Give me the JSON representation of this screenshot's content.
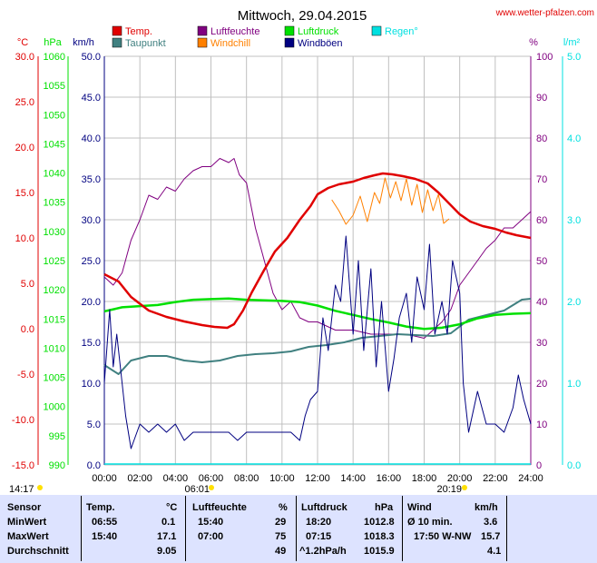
{
  "header": {
    "title": "Mittwoch, 29.04.2015",
    "site": "www.wetter-pfalzen.com"
  },
  "sun": {
    "rise_label": "06:01",
    "set_label": "20:19",
    "left_label": "14:17"
  },
  "colors": {
    "temp": "#e00000",
    "dew": "#408080",
    "humidity": "#800080",
    "windchill": "#ff8000",
    "pressure": "#00e000",
    "gust": "#000080",
    "rain": "#00e0e0",
    "grid": "#c0c0c0",
    "table_bg": "#dde3ff"
  },
  "chart_data": {
    "type": "line",
    "title": "Mittwoch, 29.04.2015",
    "xlabel": "",
    "x_ticks": [
      "00:00",
      "02:00",
      "04:00",
      "06:00",
      "08:00",
      "10:00",
      "12:00",
      "14:00",
      "16:00",
      "18:00",
      "20:00",
      "22:00",
      "24:00"
    ],
    "xlim_hours": [
      0,
      24
    ],
    "axes": {
      "temp": {
        "unit": "°C",
        "range": [
          -15,
          30
        ],
        "ticks": [
          "30.0",
          "25.0",
          "20.0",
          "15.0",
          "10.0",
          "5.0",
          "0.0",
          "-5.0",
          "-10.0",
          "-15.0"
        ]
      },
      "pressure": {
        "unit": "hPa",
        "range": [
          990,
          1060
        ],
        "ticks": [
          "1060",
          "1055",
          "1050",
          "1045",
          "1040",
          "1035",
          "1030",
          "1025",
          "1020",
          "1015",
          "1010",
          "1005",
          "1000",
          "995",
          "990"
        ]
      },
      "wind": {
        "unit": "km/h",
        "range": [
          0,
          50
        ],
        "ticks": [
          "50.0",
          "45.0",
          "40.0",
          "35.0",
          "30.0",
          "25.0",
          "20.0",
          "15.0",
          "10.0",
          "5.0",
          "0.0"
        ]
      },
      "humidity": {
        "unit": "%",
        "range": [
          0,
          100
        ],
        "ticks": [
          "100",
          "90",
          "80",
          "70",
          "60",
          "50",
          "40",
          "30",
          "20",
          "10",
          "0"
        ]
      },
      "rain": {
        "unit": "l/m²",
        "range": [
          0,
          5
        ],
        "ticks": [
          "5.0",
          "4.0",
          "3.0",
          "2.0",
          "1.0",
          "0.0"
        ]
      }
    },
    "legend": [
      {
        "name": "Temp.",
        "key": "temp"
      },
      {
        "name": "Luftfeuchte",
        "key": "humidity"
      },
      {
        "name": "Luftdruck",
        "key": "pressure"
      },
      {
        "name": "Regen°",
        "key": "rain"
      },
      {
        "name": "Taupunkt",
        "key": "dew"
      },
      {
        "name": "Windchill",
        "key": "windchill"
      },
      {
        "name": "Windböen",
        "key": "gust"
      }
    ],
    "series": [
      {
        "name": "Temp.",
        "key": "temp",
        "axis": "temp",
        "x": [
          0,
          0.8,
          1.5,
          2.5,
          3.5,
          4.5,
          5.5,
          6.2,
          6.92,
          7.3,
          7.8,
          8.3,
          9,
          9.6,
          10.3,
          11,
          11.6,
          12,
          12.6,
          13.2,
          14,
          14.6,
          15.2,
          15.67,
          16.2,
          16.8,
          17.5,
          18.2,
          18.8,
          19.4,
          20,
          20.6,
          21.3,
          22,
          22.6,
          23.2,
          24
        ],
        "y": [
          6.0,
          5.2,
          3.5,
          2.0,
          1.3,
          0.8,
          0.4,
          0.2,
          0.1,
          0.5,
          2.0,
          4.0,
          6.5,
          8.5,
          10.0,
          12.0,
          13.5,
          14.8,
          15.5,
          15.9,
          16.2,
          16.6,
          16.9,
          17.1,
          17.0,
          16.8,
          16.5,
          16.0,
          15.0,
          13.8,
          12.6,
          11.8,
          11.3,
          11.0,
          10.6,
          10.3,
          10.0
        ]
      },
      {
        "name": "Taupunkt",
        "key": "dew",
        "axis": "temp",
        "x": [
          0,
          0.8,
          1.5,
          2.5,
          3.5,
          4.5,
          5.5,
          6.5,
          7.5,
          8.5,
          9.5,
          10.5,
          11.5,
          12.5,
          13.5,
          14.5,
          15.5,
          16.5,
          17.5,
          18.5,
          19.5,
          20.5,
          21.5,
          22.5,
          23.5,
          24
        ],
        "y": [
          -4.0,
          -5.0,
          -3.5,
          -3.0,
          -3.0,
          -3.5,
          -3.7,
          -3.5,
          -3.0,
          -2.8,
          -2.7,
          -2.5,
          -2.0,
          -1.8,
          -1.5,
          -1.0,
          -0.8,
          -0.6,
          -0.7,
          -0.8,
          -0.5,
          1.0,
          1.5,
          2.0,
          3.2,
          3.3
        ]
      },
      {
        "name": "Windchill",
        "key": "windchill",
        "axis": "temp",
        "x": [
          12.8,
          13.2,
          13.6,
          14,
          14.4,
          14.8,
          15.2,
          15.5,
          15.8,
          16.1,
          16.4,
          16.7,
          17,
          17.3,
          17.6,
          17.9,
          18.2,
          18.5,
          18.8,
          19.1,
          19.4
        ],
        "y": [
          14.2,
          13.0,
          11.5,
          12.5,
          14.6,
          11.8,
          15.0,
          13.8,
          16.6,
          14.4,
          16.2,
          14.1,
          16.5,
          13.6,
          15.9,
          12.8,
          15.3,
          13.0,
          14.8,
          11.6,
          12.1
        ]
      },
      {
        "name": "Luftfeuchte",
        "key": "humidity",
        "axis": "humidity",
        "x": [
          0,
          0.5,
          1,
          1.5,
          2,
          2.5,
          3,
          3.5,
          4,
          4.5,
          5,
          5.5,
          6,
          6.5,
          7,
          7.3,
          7.6,
          8,
          8.5,
          9,
          9.5,
          10,
          10.5,
          11,
          11.5,
          12,
          12.5,
          13,
          14,
          15,
          16,
          17,
          18,
          18.5,
          19,
          19.5,
          20,
          20.5,
          21,
          21.5,
          22,
          22.5,
          23,
          23.5,
          24
        ],
        "y": [
          46,
          44,
          47,
          55,
          60,
          66,
          65,
          68,
          67,
          70,
          72,
          73,
          73,
          75,
          74,
          75,
          71,
          69,
          58,
          50,
          42,
          38,
          40,
          36,
          35,
          35,
          34,
          33,
          33,
          32,
          32,
          32,
          31,
          33,
          35,
          38,
          44,
          47,
          50,
          53,
          55,
          58,
          58,
          60,
          62
        ]
      },
      {
        "name": "Luftdruck",
        "key": "pressure",
        "axis": "pressure",
        "x": [
          0,
          1,
          2,
          3,
          4,
          5,
          6,
          7,
          8,
          9,
          10,
          11,
          12,
          13,
          14,
          15,
          16,
          17,
          18,
          19,
          20,
          21,
          22,
          23,
          24
        ],
        "y": [
          1016.3,
          1017.0,
          1017.2,
          1017.4,
          1017.9,
          1018.3,
          1018.4,
          1018.5,
          1018.3,
          1018.2,
          1018.1,
          1017.9,
          1017.3,
          1016.4,
          1015.7,
          1015.0,
          1014.4,
          1013.7,
          1013.3,
          1013.5,
          1014.1,
          1015.1,
          1015.7,
          1015.9,
          1016.0
        ]
      },
      {
        "name": "Windböen",
        "key": "gust",
        "axis": "wind",
        "x": [
          0,
          0.3,
          0.5,
          0.7,
          1,
          1.2,
          1.5,
          2,
          2.5,
          3,
          3.5,
          4,
          4.5,
          5,
          5.5,
          6,
          6.5,
          7,
          7.5,
          8,
          8.5,
          9,
          9.5,
          10,
          10.5,
          11,
          11.3,
          11.6,
          12,
          12.3,
          12.6,
          13,
          13.3,
          13.6,
          14,
          14.3,
          14.6,
          15,
          15.3,
          15.6,
          16,
          16.3,
          16.6,
          17,
          17.3,
          17.6,
          18,
          18.3,
          18.6,
          19,
          19.3,
          19.6,
          20,
          20.2,
          20.5,
          21,
          21.5,
          22,
          22.5,
          23,
          23.3,
          23.6,
          24
        ],
        "y": [
          10,
          19,
          12,
          16,
          10,
          6,
          2,
          5,
          4,
          5,
          4,
          5,
          3,
          4,
          4,
          4,
          4,
          4,
          3,
          4,
          4,
          4,
          4,
          4,
          4,
          3,
          6,
          8,
          9,
          18,
          14,
          22,
          20,
          28,
          16,
          25,
          14,
          24,
          12,
          20,
          9,
          13,
          18,
          21,
          15,
          23,
          19,
          27,
          16,
          20,
          16,
          25,
          21,
          10,
          4,
          9,
          5,
          5,
          4,
          7,
          11,
          8,
          5
        ]
      }
    ]
  },
  "table": {
    "headers": {
      "sensor": "Sensor",
      "temp": "Temp.",
      "temp_unit": "°C",
      "hum": "Luftfeuchte",
      "hum_unit": "%",
      "press": "Luftdruck",
      "press_unit": "hPa",
      "wind": "Wind",
      "wind_unit": "km/h"
    },
    "rows": [
      {
        "label": "MinWert",
        "temp_time": "06:55",
        "temp_val": "0.1",
        "hum_time": "15:40",
        "hum_val": "29",
        "press_time": "18:20",
        "press_val": "1012.8",
        "wind_time": "Ø 10 min.",
        "wind_val": "3.6"
      },
      {
        "label": "MaxWert",
        "temp_time": "15:40",
        "temp_val": "17.1",
        "hum_time": "07:00",
        "hum_val": "75",
        "press_time": "07:15",
        "press_val": "1018.3",
        "wind_time": "17:50 W-NW",
        "wind_val": "15.7"
      },
      {
        "label": "Durchschnitt",
        "temp_time": "",
        "temp_val": "9.05",
        "hum_time": "",
        "hum_val": "49",
        "press_time": "^1.2hPa/h",
        "press_val": "1015.9",
        "wind_time": "",
        "wind_val": "4.1"
      }
    ]
  }
}
